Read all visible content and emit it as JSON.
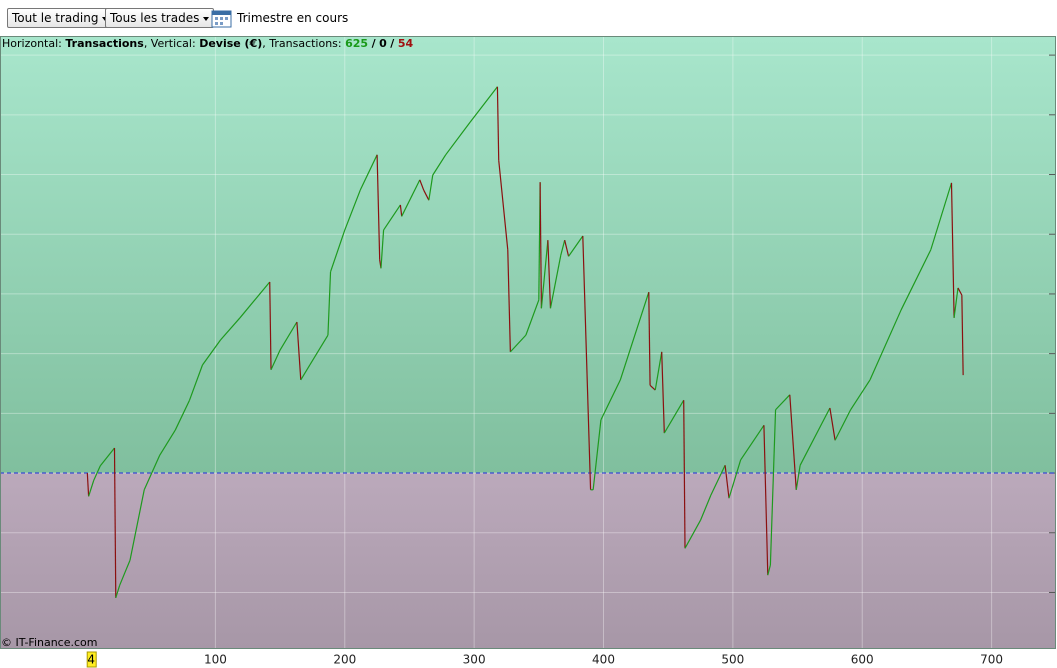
{
  "toolbar": {
    "filter_1": "Tout le trading",
    "filter_2": "Tous les trades",
    "period": "Trimestre en cours"
  },
  "info": {
    "h_label": "Horizontal:",
    "h_value": "Transactions",
    "v_label": ", Vertical:",
    "v_value": "Devise (€)",
    "t_label": ", Transactions:",
    "t_win": "625",
    "sep_1": "/",
    "t_even": "0",
    "sep_2": "/",
    "t_loss": "54"
  },
  "footer": "© IT-Finance.com",
  "chart_data": {
    "type": "line",
    "x": [
      1,
      2,
      6,
      11,
      22,
      23,
      26,
      34,
      45,
      57,
      69,
      80,
      90,
      104,
      119,
      142,
      143,
      150,
      163,
      166,
      173,
      187,
      189,
      200,
      212,
      225,
      227,
      228,
      230,
      243,
      244,
      258,
      261,
      265,
      268,
      278,
      297,
      318,
      319,
      326,
      328,
      340,
      350,
      351,
      352,
      357,
      359,
      367,
      370,
      373,
      384,
      390,
      392,
      398,
      413,
      435,
      436,
      440,
      445,
      447,
      462,
      463,
      475,
      483,
      494,
      497,
      506,
      524,
      527,
      529,
      533,
      544,
      549,
      552,
      575,
      579,
      591,
      606,
      630,
      653,
      669,
      671,
      674,
      677,
      678
    ],
    "values": [
      0,
      -39,
      -12,
      12,
      42,
      -209,
      -188,
      -146,
      -28,
      30,
      72,
      122,
      181,
      223,
      260,
      320,
      173,
      206,
      253,
      156,
      181,
      231,
      337,
      407,
      474,
      533,
      357,
      343,
      407,
      449,
      430,
      491,
      474,
      457,
      499,
      533,
      588,
      647,
      524,
      374,
      203,
      231,
      290,
      487,
      276,
      390,
      276,
      365,
      390,
      363,
      397,
      -28,
      -28,
      89,
      156,
      303,
      147,
      139,
      203,
      67,
      122,
      -126,
      -79,
      -37,
      13,
      -42,
      22,
      80,
      -171,
      -154,
      106,
      131,
      -28,
      13,
      109,
      55,
      106,
      156,
      273,
      374,
      486,
      260,
      310,
      298,
      164
    ],
    "up_color": "#1e9a1e",
    "down_color": "#8b1010",
    "xlim": [
      -66.5,
      749
    ],
    "xticks": [
      100,
      200,
      300,
      400,
      500,
      600,
      700
    ],
    "ylim": [
      -293,
      732
    ],
    "yticks": [
      -200,
      -100,
      0,
      100,
      200,
      300,
      400,
      500,
      600,
      700
    ],
    "grid": true,
    "zero_line": true,
    "cursor_x": 4
  }
}
